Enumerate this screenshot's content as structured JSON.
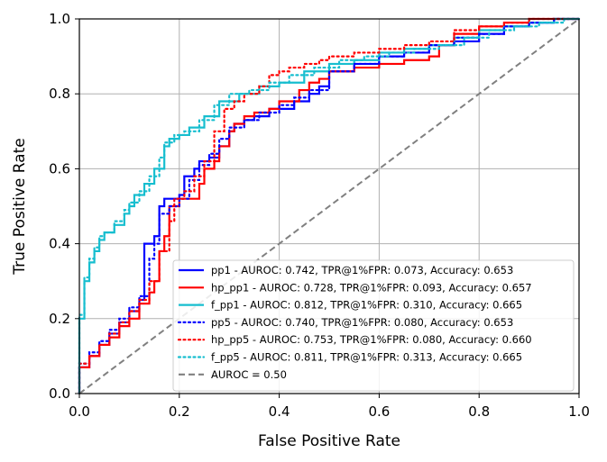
{
  "chart_data": {
    "type": "line",
    "title": "",
    "xlabel": "False Positive Rate",
    "ylabel": "True Positive Rate",
    "xlim": [
      0,
      1
    ],
    "ylim": [
      0,
      1
    ],
    "xticks": [
      "0.0",
      "0.2",
      "0.4",
      "0.6",
      "0.8",
      "1.0"
    ],
    "yticks": [
      "0.0",
      "0.2",
      "0.4",
      "0.6",
      "0.8",
      "1.0"
    ],
    "grid": true,
    "legend_position": "lower-right",
    "series": [
      {
        "name": "pp1 - AUROC: 0.742, TPR@1%FPR: 0.073, Accuracy: 0.653",
        "color": "#0000ff",
        "style": "solid",
        "x": [
          0,
          0,
          0.02,
          0.04,
          0.06,
          0.08,
          0.1,
          0.12,
          0.13,
          0.15,
          0.16,
          0.17,
          0.19,
          0.2,
          0.21,
          0.23,
          0.24,
          0.26,
          0.28,
          0.3,
          0.31,
          0.33,
          0.35,
          0.38,
          0.4,
          0.43,
          0.46,
          0.48,
          0.5,
          0.55,
          0.6,
          0.65,
          0.7,
          0.75,
          0.8,
          0.85,
          0.9,
          0.95,
          1.0
        ],
        "y": [
          0,
          0.07,
          0.1,
          0.13,
          0.16,
          0.19,
          0.22,
          0.25,
          0.4,
          0.42,
          0.5,
          0.52,
          0.52,
          0.53,
          0.58,
          0.6,
          0.62,
          0.63,
          0.66,
          0.7,
          0.72,
          0.73,
          0.74,
          0.76,
          0.76,
          0.78,
          0.8,
          0.82,
          0.86,
          0.88,
          0.9,
          0.91,
          0.93,
          0.94,
          0.96,
          0.98,
          0.99,
          1.0,
          1.0
        ]
      },
      {
        "name": "hp_pp1 - AUROC: 0.728, TPR@1%FPR: 0.093, Accuracy: 0.657",
        "color": "#ff0000",
        "style": "solid",
        "x": [
          0,
          0,
          0.02,
          0.04,
          0.06,
          0.08,
          0.1,
          0.12,
          0.14,
          0.15,
          0.16,
          0.17,
          0.18,
          0.2,
          0.22,
          0.24,
          0.25,
          0.27,
          0.28,
          0.3,
          0.31,
          0.33,
          0.35,
          0.38,
          0.4,
          0.44,
          0.46,
          0.48,
          0.5,
          0.55,
          0.6,
          0.65,
          0.7,
          0.72,
          0.75,
          0.8,
          0.85,
          0.9,
          0.95,
          1.0
        ],
        "y": [
          0,
          0.07,
          0.1,
          0.13,
          0.15,
          0.18,
          0.2,
          0.24,
          0.27,
          0.3,
          0.38,
          0.42,
          0.5,
          0.52,
          0.52,
          0.56,
          0.6,
          0.62,
          0.66,
          0.7,
          0.72,
          0.74,
          0.75,
          0.76,
          0.78,
          0.81,
          0.83,
          0.84,
          0.86,
          0.87,
          0.88,
          0.89,
          0.9,
          0.93,
          0.96,
          0.98,
          0.99,
          1.0,
          1.0,
          1.0
        ]
      },
      {
        "name": "f_pp1 - AUROC: 0.812, TPR@1%FPR: 0.310, Accuracy: 0.665",
        "color": "#17becf",
        "style": "solid",
        "x": [
          0,
          0,
          0.01,
          0.02,
          0.03,
          0.04,
          0.05,
          0.07,
          0.09,
          0.1,
          0.11,
          0.13,
          0.15,
          0.17,
          0.18,
          0.2,
          0.22,
          0.25,
          0.28,
          0.32,
          0.36,
          0.4,
          0.45,
          0.5,
          0.55,
          0.6,
          0.65,
          0.7,
          0.75,
          0.8,
          0.85,
          0.9,
          0.95,
          1.0
        ],
        "y": [
          0,
          0.2,
          0.3,
          0.35,
          0.38,
          0.41,
          0.43,
          0.45,
          0.48,
          0.5,
          0.53,
          0.56,
          0.6,
          0.66,
          0.68,
          0.69,
          0.71,
          0.74,
          0.78,
          0.8,
          0.82,
          0.83,
          0.86,
          0.88,
          0.89,
          0.91,
          0.92,
          0.93,
          0.95,
          0.97,
          0.98,
          0.99,
          1.0,
          1.0
        ]
      },
      {
        "name": "pp5 - AUROC: 0.740, TPR@1%FPR: 0.080, Accuracy: 0.653",
        "color": "#0000ff",
        "style": "dotted",
        "x": [
          0,
          0,
          0.02,
          0.04,
          0.06,
          0.08,
          0.1,
          0.12,
          0.14,
          0.15,
          0.16,
          0.18,
          0.2,
          0.22,
          0.24,
          0.26,
          0.28,
          0.3,
          0.33,
          0.36,
          0.4,
          0.43,
          0.46,
          0.5,
          0.55,
          0.6,
          0.65,
          0.7,
          0.75,
          0.8,
          0.85,
          0.9,
          0.95,
          1.0
        ],
        "y": [
          0,
          0.08,
          0.11,
          0.14,
          0.17,
          0.2,
          0.23,
          0.26,
          0.36,
          0.4,
          0.48,
          0.5,
          0.52,
          0.57,
          0.61,
          0.64,
          0.68,
          0.71,
          0.73,
          0.75,
          0.77,
          0.79,
          0.81,
          0.86,
          0.88,
          0.9,
          0.91,
          0.93,
          0.95,
          0.96,
          0.98,
          0.99,
          1.0,
          1.0
        ]
      },
      {
        "name": "hp_pp5 - AUROC: 0.753, TPR@1%FPR: 0.080, Accuracy: 0.660",
        "color": "#ff0000",
        "style": "dotted",
        "x": [
          0,
          0,
          0.02,
          0.04,
          0.06,
          0.08,
          0.1,
          0.12,
          0.14,
          0.16,
          0.18,
          0.19,
          0.21,
          0.23,
          0.25,
          0.27,
          0.29,
          0.31,
          0.33,
          0.36,
          0.38,
          0.4,
          0.42,
          0.45,
          0.48,
          0.5,
          0.55,
          0.6,
          0.65,
          0.7,
          0.75,
          0.8,
          0.85,
          0.9,
          0.95,
          1.0
        ],
        "y": [
          0,
          0.08,
          0.1,
          0.13,
          0.16,
          0.19,
          0.22,
          0.25,
          0.3,
          0.38,
          0.46,
          0.52,
          0.54,
          0.58,
          0.62,
          0.7,
          0.76,
          0.78,
          0.8,
          0.82,
          0.85,
          0.86,
          0.87,
          0.88,
          0.89,
          0.9,
          0.91,
          0.92,
          0.93,
          0.94,
          0.97,
          0.98,
          0.99,
          1.0,
          1.0,
          1.0
        ]
      },
      {
        "name": "f_pp5 - AUROC: 0.811, TPR@1%FPR: 0.313, Accuracy: 0.665",
        "color": "#17becf",
        "style": "dotted",
        "x": [
          0,
          0,
          0.01,
          0.02,
          0.03,
          0.04,
          0.05,
          0.07,
          0.09,
          0.1,
          0.12,
          0.14,
          0.16,
          0.17,
          0.19,
          0.21,
          0.24,
          0.27,
          0.3,
          0.34,
          0.38,
          0.42,
          0.47,
          0.52,
          0.57,
          0.62,
          0.67,
          0.72,
          0.77,
          0.82,
          0.87,
          0.92,
          0.97,
          1.0
        ],
        "y": [
          0,
          0.21,
          0.31,
          0.36,
          0.39,
          0.42,
          0.43,
          0.46,
          0.49,
          0.51,
          0.54,
          0.58,
          0.63,
          0.67,
          0.69,
          0.7,
          0.73,
          0.77,
          0.8,
          0.81,
          0.83,
          0.85,
          0.87,
          0.89,
          0.9,
          0.91,
          0.92,
          0.93,
          0.95,
          0.97,
          0.98,
          0.99,
          1.0,
          1.0
        ]
      },
      {
        "name": "AUROC = 0.50",
        "color": "#808080",
        "style": "dashed",
        "x": [
          0,
          1
        ],
        "y": [
          0,
          1
        ]
      }
    ]
  }
}
